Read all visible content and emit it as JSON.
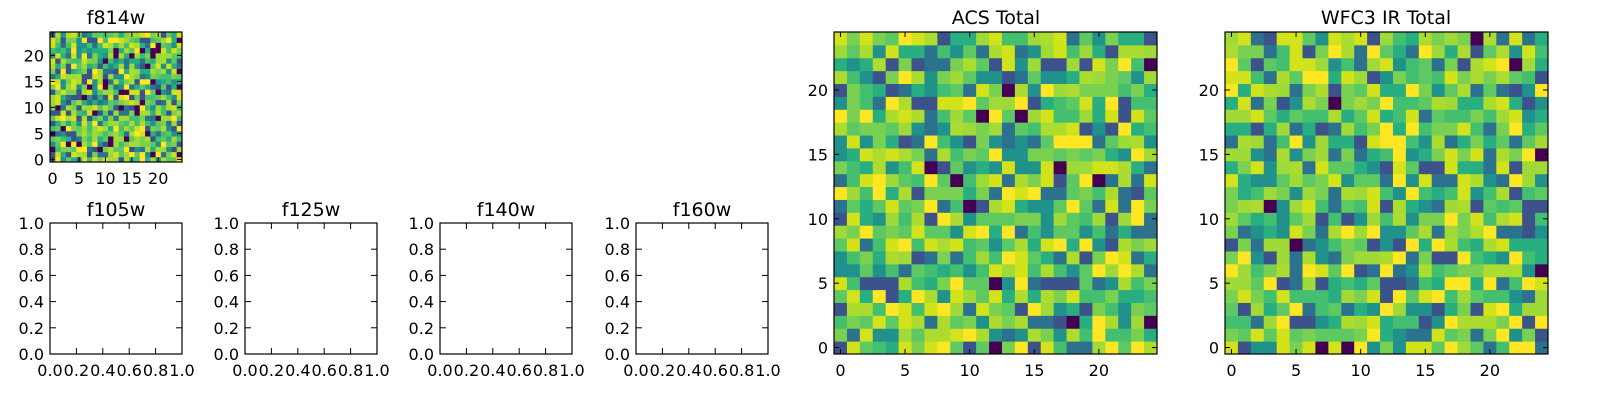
{
  "chart_data": [
    {
      "id": "f814w",
      "type": "heatmap",
      "title": "f814w",
      "grid_size": 25,
      "xticks": [
        0,
        5,
        10,
        15,
        20
      ],
      "yticks": [
        0,
        5,
        10,
        15,
        20
      ],
      "xlim": [
        -0.5,
        24.5
      ],
      "ylim": [
        -0.5,
        24.5
      ],
      "colormap": "viridis",
      "seed": 814,
      "dark_fraction": 0.06
    },
    {
      "id": "f105w",
      "type": "scatter",
      "title": "f105w",
      "xlim": [
        0,
        1
      ],
      "ylim": [
        0,
        1
      ],
      "xticks": [
        "0.0",
        "0.2",
        "0.4",
        "0.6",
        "0.8",
        "1.0"
      ],
      "yticks": [
        "0.0",
        "0.2",
        "0.4",
        "0.6",
        "0.8",
        "1.0"
      ],
      "empty": true
    },
    {
      "id": "f125w",
      "type": "scatter",
      "title": "f125w",
      "xlim": [
        0,
        1
      ],
      "ylim": [
        0,
        1
      ],
      "xticks": [
        "0.0",
        "0.2",
        "0.4",
        "0.6",
        "0.8",
        "1.0"
      ],
      "yticks": [
        "0.0",
        "0.2",
        "0.4",
        "0.6",
        "0.8",
        "1.0"
      ],
      "empty": true
    },
    {
      "id": "f140w",
      "type": "scatter",
      "title": "f140w",
      "xlim": [
        0,
        1
      ],
      "ylim": [
        0,
        1
      ],
      "xticks": [
        "0.0",
        "0.2",
        "0.4",
        "0.6",
        "0.8",
        "1.0"
      ],
      "yticks": [
        "0.0",
        "0.2",
        "0.4",
        "0.6",
        "0.8",
        "1.0"
      ],
      "empty": true
    },
    {
      "id": "f160w",
      "type": "scatter",
      "title": "f160w",
      "xlim": [
        0,
        1
      ],
      "ylim": [
        0,
        1
      ],
      "xticks": [
        "0.0",
        "0.2",
        "0.4",
        "0.6",
        "0.8",
        "1.0"
      ],
      "yticks": [
        "0.0",
        "0.2",
        "0.4",
        "0.6",
        "0.8",
        "1.0"
      ],
      "empty": true
    },
    {
      "id": "acs_total",
      "type": "heatmap",
      "title": "ACS Total",
      "grid_size": 25,
      "xticks": [
        0,
        5,
        10,
        15,
        20
      ],
      "yticks": [
        0,
        5,
        10,
        15,
        20
      ],
      "xlim": [
        -0.5,
        24.5
      ],
      "ylim": [
        -0.5,
        24.5
      ],
      "colormap": "viridis",
      "seed": 4242,
      "dark_fraction": 0.02
    },
    {
      "id": "wfc3_ir_total",
      "type": "heatmap",
      "title": "WFC3 IR Total",
      "grid_size": 25,
      "xticks": [
        0,
        5,
        10,
        15,
        20
      ],
      "yticks": [
        0,
        5,
        10,
        15,
        20
      ],
      "xlim": [
        -0.5,
        24.5
      ],
      "ylim": [
        -0.5,
        24.5
      ],
      "colormap": "viridis",
      "seed": 1603,
      "dark_fraction": 0.02
    }
  ]
}
